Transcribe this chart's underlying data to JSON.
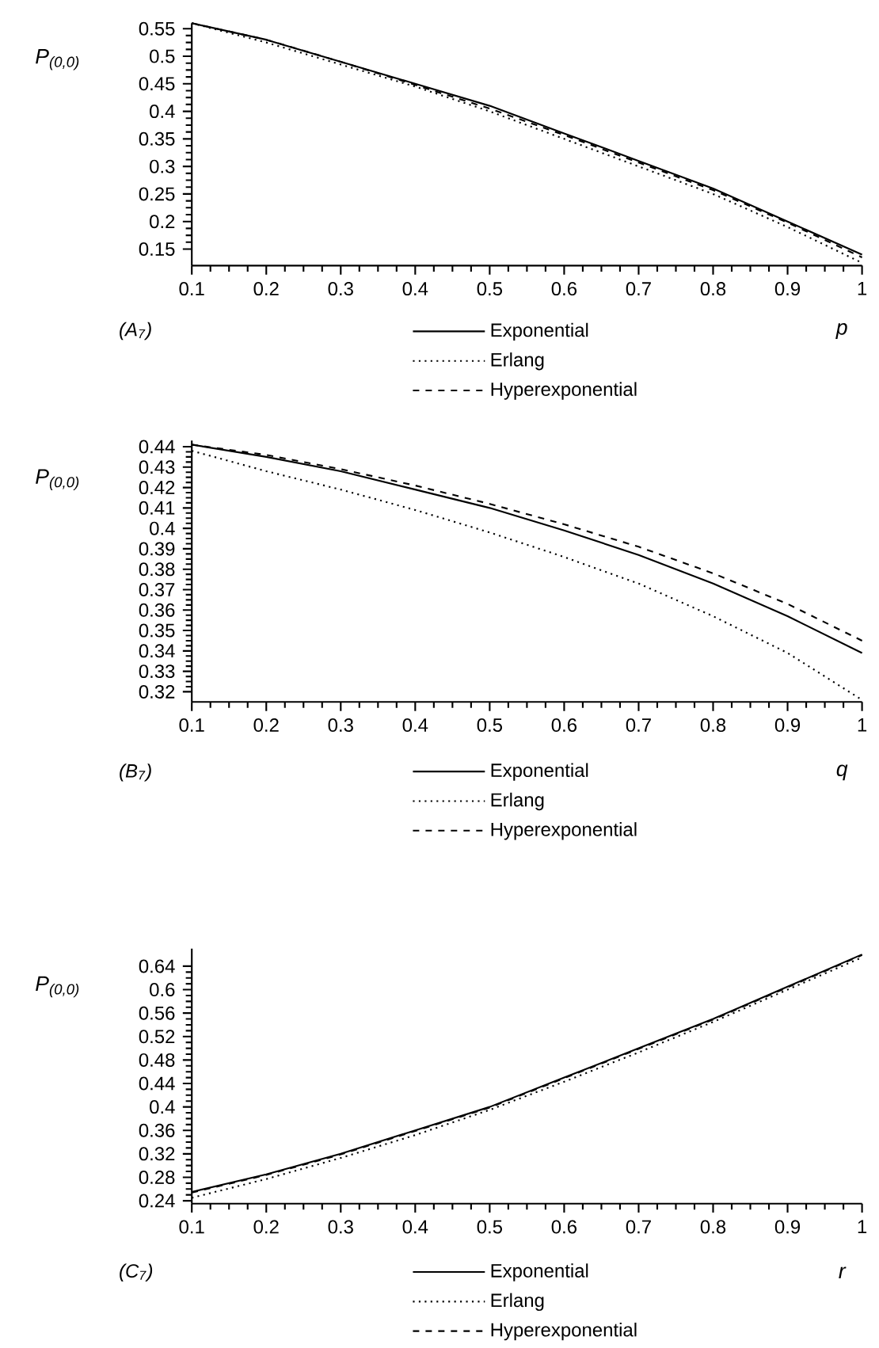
{
  "chart_data": [
    {
      "type": "line",
      "xlabel": "p",
      "ylabel": "P$_{(0,0)}$",
      "annotations": [
        "(A$_{7}$)"
      ],
      "legend": "bottom",
      "x": [
        0.1,
        0.2,
        0.3,
        0.4,
        0.5,
        0.6,
        0.7,
        0.8,
        0.9,
        1.0
      ],
      "xlim": [
        0.1,
        1.0
      ],
      "ylim": [
        0.12,
        0.56
      ],
      "xticks": [
        0.1,
        0.2,
        0.3,
        0.4,
        0.5,
        0.6,
        0.7,
        0.8,
        0.9,
        1
      ],
      "yticks": [
        0.15,
        0.2,
        0.25,
        0.3,
        0.35,
        0.4,
        0.45,
        0.5,
        0.55
      ],
      "series": [
        {
          "name": "Exponential",
          "color": "#000000",
          "line_style": "solid",
          "values": [
            0.56,
            0.53,
            0.49,
            0.45,
            0.41,
            0.36,
            0.31,
            0.26,
            0.2,
            0.14
          ]
        },
        {
          "name": "Erlang",
          "color": "#000000",
          "line_style": "dotted",
          "values": [
            0.56,
            0.525,
            0.485,
            0.445,
            0.4,
            0.35,
            0.3,
            0.25,
            0.19,
            0.125
          ]
        },
        {
          "name": "Hyperexponential",
          "color": "#000000",
          "line_style": "dashed",
          "values": [
            0.56,
            0.53,
            0.49,
            0.448,
            0.405,
            0.357,
            0.307,
            0.257,
            0.198,
            0.135
          ]
        }
      ]
    },
    {
      "type": "line",
      "xlabel": "q",
      "ylabel": "P$_{(0,0)}$",
      "annotations": [
        "(B$_{7}$)"
      ],
      "legend": "bottom",
      "x": [
        0.1,
        0.2,
        0.3,
        0.4,
        0.5,
        0.6,
        0.7,
        0.8,
        0.9,
        1.0
      ],
      "xlim": [
        0.1,
        1.0
      ],
      "ylim": [
        0.315,
        0.443
      ],
      "xticks": [
        0.1,
        0.2,
        0.3,
        0.4,
        0.5,
        0.6,
        0.7,
        0.8,
        0.9,
        1
      ],
      "yticks": [
        0.32,
        0.33,
        0.34,
        0.35,
        0.36,
        0.37,
        0.38,
        0.39,
        0.4,
        0.41,
        0.42,
        0.43,
        0.44
      ],
      "series": [
        {
          "name": "Exponential",
          "color": "#000000",
          "line_style": "solid",
          "values": [
            0.441,
            0.435,
            0.428,
            0.419,
            0.41,
            0.399,
            0.387,
            0.373,
            0.357,
            0.339
          ]
        },
        {
          "name": "Erlang",
          "color": "#000000",
          "line_style": "dotted",
          "values": [
            0.438,
            0.428,
            0.419,
            0.409,
            0.398,
            0.386,
            0.373,
            0.357,
            0.339,
            0.316
          ]
        },
        {
          "name": "Hyperexponential",
          "color": "#000000",
          "line_style": "dashed",
          "values": [
            0.441,
            0.436,
            0.429,
            0.421,
            0.412,
            0.402,
            0.391,
            0.378,
            0.363,
            0.345
          ]
        }
      ]
    },
    {
      "type": "line",
      "xlabel": "r",
      "ylabel": "P$_{(0,0)}$",
      "annotations": [
        "(C$_{7}$)"
      ],
      "legend": "bottom",
      "x": [
        0.1,
        0.2,
        0.3,
        0.4,
        0.5,
        0.6,
        0.7,
        0.8,
        0.9,
        1.0
      ],
      "xlim": [
        0.1,
        1.0
      ],
      "ylim": [
        0.235,
        0.67
      ],
      "xticks": [
        0.1,
        0.2,
        0.3,
        0.4,
        0.5,
        0.6,
        0.7,
        0.8,
        0.9,
        1
      ],
      "yticks": [
        0.24,
        0.28,
        0.32,
        0.36,
        0.4,
        0.44,
        0.48,
        0.52,
        0.56,
        0.6,
        0.64
      ],
      "series": [
        {
          "name": "Exponential",
          "color": "#000000",
          "line_style": "solid",
          "values": [
            0.255,
            0.285,
            0.32,
            0.36,
            0.4,
            0.45,
            0.5,
            0.55,
            0.605,
            0.66
          ]
        },
        {
          "name": "Erlang",
          "color": "#000000",
          "line_style": "dotted",
          "values": [
            0.245,
            0.277,
            0.313,
            0.352,
            0.395,
            0.443,
            0.493,
            0.545,
            0.6,
            0.655
          ]
        },
        {
          "name": "Hyperexponential",
          "color": "#000000",
          "line_style": "dashed",
          "values": [
            0.254,
            0.284,
            0.319,
            0.359,
            0.399,
            0.449,
            0.499,
            0.549,
            0.604,
            0.659
          ]
        }
      ]
    }
  ]
}
